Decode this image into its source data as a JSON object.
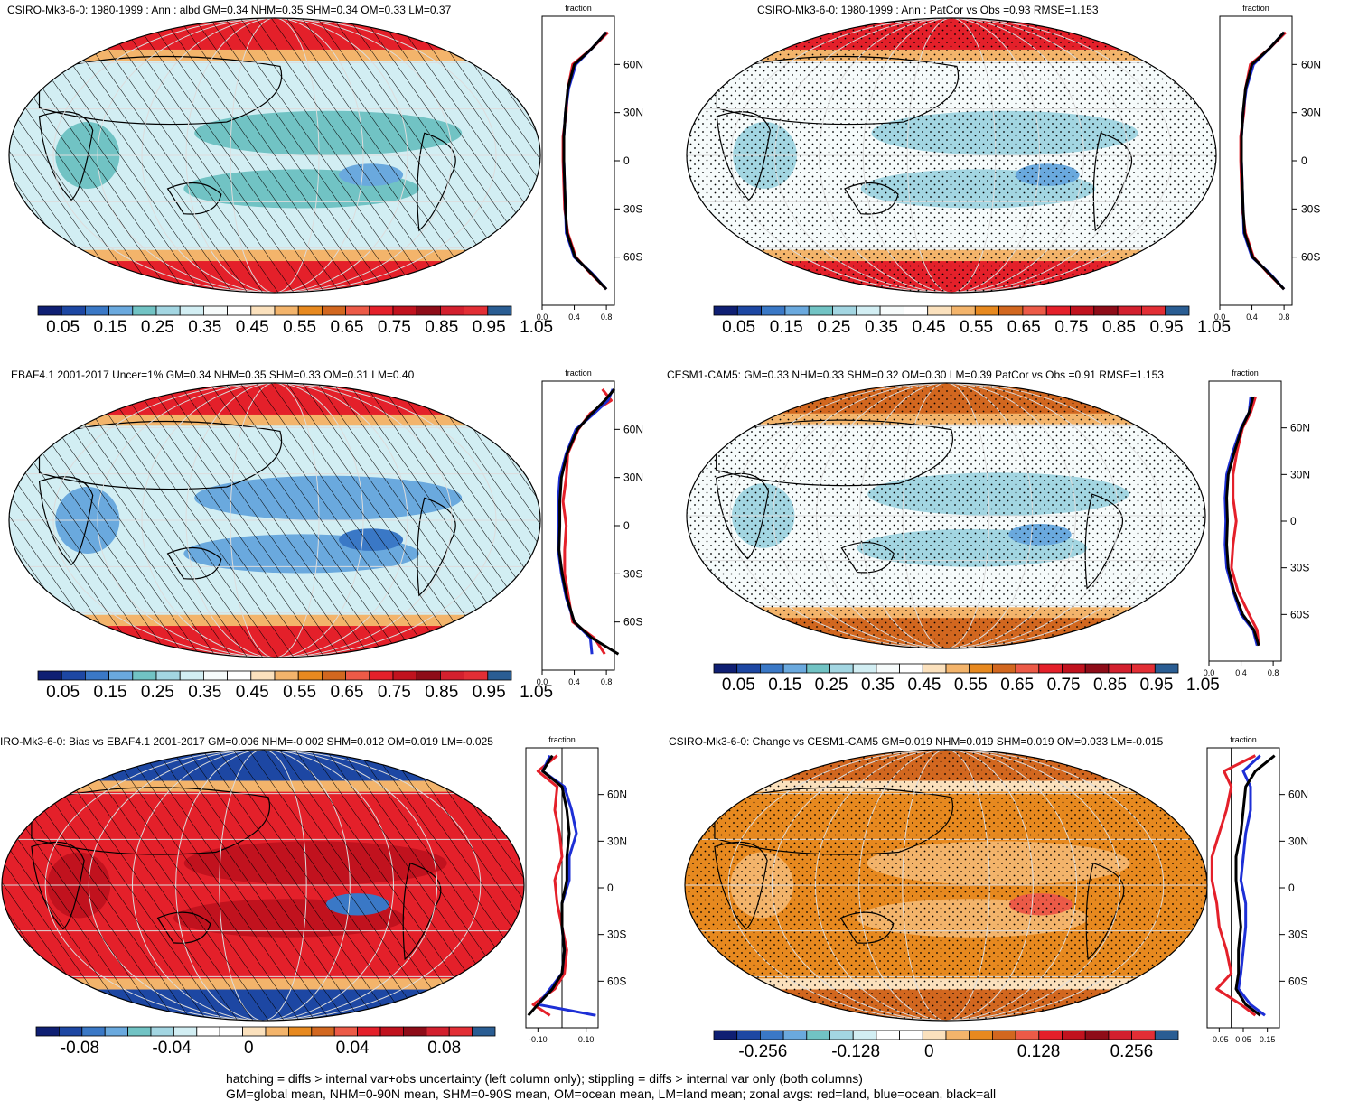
{
  "palette_full": [
    "#0f1f73",
    "#1d47a3",
    "#3a78c6",
    "#6aa9de",
    "#71c3c4",
    "#a3d6e2",
    "#d2eef3",
    "#f6fbfb",
    "#ffffff",
    "#fbe1bd",
    "#f3b46b",
    "#e7891f",
    "#d2671f",
    "#ec5a47",
    "#e4202a",
    "#c1121e",
    "#8e0c18",
    "#d3202e",
    "#e22e35",
    "#2a5d93"
  ],
  "palette_div": [
    "#0f1f73",
    "#1d47a3",
    "#3a78c6",
    "#6aa9de",
    "#71c3c4",
    "#a3d6e2",
    "#d2eef3",
    "#ffffff",
    "#ffffff",
    "#fbe1bd",
    "#f3b46b",
    "#e7891f",
    "#d2671f",
    "#ec5a47",
    "#e4202a",
    "#c1121e",
    "#8e0c18",
    "#d3202e",
    "#e22e35",
    "#2a5d93"
  ],
  "footer_line1": "hatching = diffs > internal var+obs uncertainty (left column only); stippling = diffs > internal var only (both columns)",
  "footer_line2": "GM=global mean, NHM=0-90N mean, SHM=0-90S mean, OM=ocean mean, LM=land mean; zonal avgs: red=land, blue=ocean, black=all",
  "chart_data": [
    {
      "type": "map+zonal-line",
      "title": "CSIRO-Mk3-6-0: 1980-1999 : Ann : albd GM=0.34 NHM=0.35 SHM=0.34 OM=0.33 LM=0.37",
      "zonal_title": "fraction",
      "lat_ticks": [
        "60N",
        "30N",
        "0",
        "30S",
        "60S"
      ],
      "x_ticks": [
        "0.0",
        "0.4",
        "0.8"
      ],
      "x_range": [
        0,
        0.9
      ],
      "colorbar_labels": [
        "0.05",
        "0.15",
        "0.25",
        "0.35",
        "0.45",
        "0.55",
        "0.65",
        "0.75",
        "0.85",
        "0.95",
        "1.05"
      ],
      "overlay": "hatch",
      "series": [
        {
          "name": "land",
          "color": "#e4202a",
          "lat": [
            80,
            70,
            60,
            45,
            30,
            15,
            0,
            -15,
            -30,
            -45,
            -60,
            -70,
            -80
          ],
          "values": [
            0.82,
            0.62,
            0.38,
            0.32,
            0.3,
            0.26,
            0.26,
            0.27,
            0.28,
            0.32,
            0.42,
            0.6,
            0.8
          ]
        },
        {
          "name": "ocean",
          "color": "#1d2fd6",
          "lat": [
            80,
            70,
            60,
            45,
            30,
            15,
            0,
            -15,
            -30,
            -45,
            -60,
            -70,
            -80
          ],
          "values": [
            0.8,
            0.62,
            0.42,
            0.33,
            0.29,
            0.27,
            0.27,
            0.28,
            0.29,
            0.3,
            0.4,
            0.62,
            0.8
          ]
        },
        {
          "name": "all",
          "color": "#000000",
          "lat": [
            80,
            70,
            60,
            45,
            30,
            15,
            0,
            -15,
            -30,
            -45,
            -60,
            -70,
            -80
          ],
          "values": [
            0.8,
            0.62,
            0.4,
            0.32,
            0.29,
            0.27,
            0.27,
            0.28,
            0.29,
            0.31,
            0.41,
            0.61,
            0.8
          ]
        }
      ]
    },
    {
      "type": "map+zonal-line",
      "title": "CSIRO-Mk3-6-0: 1980-1999 : Ann : PatCor vs Obs =0.93 RMSE=1.153",
      "zonal_title": "fraction",
      "lat_ticks": [
        "60N",
        "30N",
        "0",
        "30S",
        "60S"
      ],
      "x_ticks": [
        "0.0",
        "0.4",
        "0.8"
      ],
      "x_range": [
        0,
        0.9
      ],
      "colorbar_labels": [
        "0.05",
        "0.15",
        "0.25",
        "0.35",
        "0.45",
        "0.55",
        "0.65",
        "0.75",
        "0.85",
        "0.95",
        "1.05"
      ],
      "overlay": "stipple",
      "series": [
        {
          "name": "land",
          "color": "#e4202a",
          "lat": [
            80,
            70,
            60,
            45,
            30,
            15,
            0,
            -15,
            -30,
            -45,
            -60,
            -70,
            -80
          ],
          "values": [
            0.82,
            0.62,
            0.38,
            0.32,
            0.3,
            0.26,
            0.26,
            0.27,
            0.28,
            0.32,
            0.42,
            0.6,
            0.8
          ]
        },
        {
          "name": "ocean",
          "color": "#1d2fd6",
          "lat": [
            80,
            70,
            60,
            45,
            30,
            15,
            0,
            -15,
            -30,
            -45,
            -60,
            -70,
            -80
          ],
          "values": [
            0.8,
            0.62,
            0.42,
            0.33,
            0.29,
            0.27,
            0.27,
            0.28,
            0.29,
            0.3,
            0.4,
            0.62,
            0.8
          ]
        },
        {
          "name": "all",
          "color": "#000000",
          "lat": [
            80,
            70,
            60,
            45,
            30,
            15,
            0,
            -15,
            -30,
            -45,
            -60,
            -70,
            -80
          ],
          "values": [
            0.8,
            0.62,
            0.4,
            0.32,
            0.29,
            0.27,
            0.27,
            0.28,
            0.29,
            0.31,
            0.41,
            0.61,
            0.8
          ]
        }
      ]
    },
    {
      "type": "map+zonal-line",
      "title": "EBAF4.1 2001-2017 Uncer=1% GM=0.34 NHM=0.35 SHM=0.33 OM=0.31 LM=0.40",
      "zonal_title": "fraction",
      "lat_ticks": [
        "60N",
        "30N",
        "0",
        "30S",
        "60S"
      ],
      "x_ticks": [
        "0.0",
        "0.4",
        "0.8"
      ],
      "x_range": [
        0,
        0.9
      ],
      "colorbar_labels": [
        "0.05",
        "0.15",
        "0.25",
        "0.35",
        "0.45",
        "0.55",
        "0.65",
        "0.75",
        "0.85",
        "0.95",
        "1.05"
      ],
      "overlay": "hatch",
      "series": [
        {
          "name": "land",
          "color": "#e4202a",
          "lat": [
            85,
            78,
            70,
            60,
            45,
            30,
            15,
            0,
            -15,
            -30,
            -45,
            -60,
            -70,
            -80
          ],
          "values": [
            0.75,
            0.86,
            0.6,
            0.45,
            0.32,
            0.3,
            0.26,
            0.3,
            0.28,
            0.28,
            0.33,
            0.38,
            0.65,
            0.78
          ]
        },
        {
          "name": "ocean",
          "color": "#1d2fd6",
          "lat": [
            85,
            78,
            70,
            60,
            45,
            30,
            15,
            0,
            -15,
            -30,
            -45,
            -60,
            -70,
            -80
          ],
          "values": [
            0.88,
            0.82,
            0.65,
            0.42,
            0.3,
            0.22,
            0.2,
            0.2,
            0.2,
            0.24,
            0.3,
            0.4,
            0.6,
            0.62
          ]
        },
        {
          "name": "all",
          "color": "#000000",
          "lat": [
            85,
            78,
            70,
            60,
            45,
            30,
            15,
            0,
            -15,
            -30,
            -45,
            -60,
            -70,
            -80
          ],
          "values": [
            0.9,
            0.78,
            0.62,
            0.44,
            0.31,
            0.24,
            0.22,
            0.22,
            0.21,
            0.25,
            0.31,
            0.4,
            0.62,
            0.95
          ]
        }
      ]
    },
    {
      "type": "map+zonal-line",
      "title": "CESM1-CAM5: GM=0.33 NHM=0.33 SHM=0.32 OM=0.30 LM=0.39 PatCor vs Obs =0.91 RMSE=1.153",
      "zonal_title": "fraction",
      "lat_ticks": [
        "60N",
        "30N",
        "0",
        "30S",
        "60S"
      ],
      "x_ticks": [
        "0.0",
        "0.4",
        "0.8"
      ],
      "x_range": [
        0,
        0.9
      ],
      "colorbar_labels": [
        "0.05",
        "0.15",
        "0.25",
        "0.35",
        "0.45",
        "0.55",
        "0.65",
        "0.75",
        "0.85",
        "0.95",
        "1.05"
      ],
      "overlay": "stipple",
      "series": [
        {
          "name": "land",
          "color": "#e4202a",
          "lat": [
            80,
            70,
            60,
            45,
            30,
            15,
            0,
            -15,
            -30,
            -45,
            -60,
            -70,
            -80
          ],
          "values": [
            0.58,
            0.52,
            0.42,
            0.35,
            0.3,
            0.3,
            0.34,
            0.3,
            0.28,
            0.36,
            0.5,
            0.6,
            0.62
          ]
        },
        {
          "name": "ocean",
          "color": "#1d2fd6",
          "lat": [
            80,
            70,
            60,
            45,
            30,
            15,
            0,
            -15,
            -30,
            -45,
            -60,
            -70,
            -80
          ],
          "values": [
            0.52,
            0.5,
            0.4,
            0.3,
            0.22,
            0.2,
            0.21,
            0.2,
            0.22,
            0.3,
            0.4,
            0.55,
            0.6
          ]
        },
        {
          "name": "all",
          "color": "#000000",
          "lat": [
            80,
            70,
            60,
            45,
            30,
            15,
            0,
            -15,
            -30,
            -45,
            -60,
            -70,
            -80
          ],
          "values": [
            0.55,
            0.5,
            0.41,
            0.32,
            0.24,
            0.22,
            0.23,
            0.22,
            0.24,
            0.31,
            0.42,
            0.56,
            0.62
          ]
        }
      ]
    },
    {
      "type": "map+zonal-line",
      "title": "IRO-Mk3-6-0: Bias vs EBAF4.1 2001-2017 GM=0.006 NHM=-0.002 SHM=0.012 OM=0.019 LM=-0.025",
      "zonal_title": "fraction",
      "lat_ticks": [
        "60N",
        "30N",
        "0",
        "30S",
        "60S"
      ],
      "x_ticks": [
        "-0.10",
        "0.10"
      ],
      "x_range": [
        -0.15,
        0.15
      ],
      "colorbar_labels": [
        "-0.08",
        "-0.04",
        "0",
        "0.04",
        "0.08"
      ],
      "overlay": "hatch",
      "series": [
        {
          "name": "land",
          "color": "#e4202a",
          "lat": [
            85,
            75,
            65,
            50,
            35,
            20,
            5,
            -10,
            -25,
            -40,
            -55,
            -65,
            -75,
            -82
          ],
          "values": [
            -0.02,
            -0.1,
            -0.02,
            -0.03,
            -0.01,
            0.0,
            -0.03,
            -0.02,
            0.0,
            0.02,
            0.01,
            -0.03,
            -0.12,
            -0.05
          ]
        },
        {
          "name": "ocean",
          "color": "#1d2fd6",
          "lat": [
            85,
            75,
            65,
            50,
            35,
            20,
            5,
            -10,
            -25,
            -40,
            -55,
            -65,
            -75,
            -82
          ],
          "values": [
            -0.05,
            -0.08,
            0.01,
            0.04,
            0.06,
            0.03,
            0.03,
            0.0,
            0.0,
            0.01,
            0.0,
            -0.05,
            -0.1,
            0.14
          ]
        },
        {
          "name": "all",
          "color": "#000000",
          "lat": [
            85,
            75,
            65,
            50,
            35,
            20,
            5,
            -10,
            -25,
            -40,
            -55,
            -65,
            -75,
            -82
          ],
          "values": [
            -0.04,
            -0.08,
            0.0,
            0.02,
            0.03,
            0.02,
            0.02,
            0.0,
            0.0,
            0.01,
            0.0,
            -0.04,
            -0.1,
            -0.14
          ]
        }
      ]
    },
    {
      "type": "map+zonal-line",
      "title": "CSIRO-Mk3-6-0: Change vs CESM1-CAM5 GM=0.019 NHM=0.019 SHM=0.019 OM=0.033 LM=-0.015",
      "zonal_title": "fraction",
      "lat_ticks": [
        "60N",
        "30N",
        "0",
        "30S",
        "60S"
      ],
      "x_ticks": [
        "-0.05",
        "0.05",
        "0.15"
      ],
      "x_range": [
        -0.1,
        0.2
      ],
      "colorbar_labels": [
        "-0.256",
        "-0.128",
        "0",
        "0.128",
        "0.256"
      ],
      "overlay": "stipple",
      "series": [
        {
          "name": "land",
          "color": "#e4202a",
          "lat": [
            85,
            75,
            65,
            50,
            35,
            20,
            5,
            -10,
            -25,
            -40,
            -55,
            -65,
            -75,
            -82
          ],
          "values": [
            0.1,
            -0.03,
            0.0,
            -0.02,
            -0.05,
            -0.08,
            -0.08,
            -0.06,
            -0.05,
            -0.02,
            0.0,
            -0.06,
            0.04,
            0.1
          ]
        },
        {
          "name": "ocean",
          "color": "#1d2fd6",
          "lat": [
            85,
            75,
            65,
            50,
            35,
            20,
            5,
            -10,
            -25,
            -40,
            -55,
            -65,
            -75,
            -82
          ],
          "values": [
            0.12,
            0.05,
            0.08,
            0.08,
            0.06,
            0.05,
            0.04,
            0.06,
            0.06,
            0.05,
            0.04,
            0.03,
            0.08,
            0.14
          ]
        },
        {
          "name": "all",
          "color": "#000000",
          "lat": [
            85,
            75,
            65,
            50,
            35,
            20,
            5,
            -10,
            -25,
            -40,
            -55,
            -65,
            -75,
            -82
          ],
          "values": [
            0.18,
            0.1,
            0.06,
            0.05,
            0.04,
            0.02,
            0.02,
            0.03,
            0.04,
            0.03,
            0.03,
            0.02,
            0.06,
            0.12
          ]
        }
      ]
    }
  ]
}
